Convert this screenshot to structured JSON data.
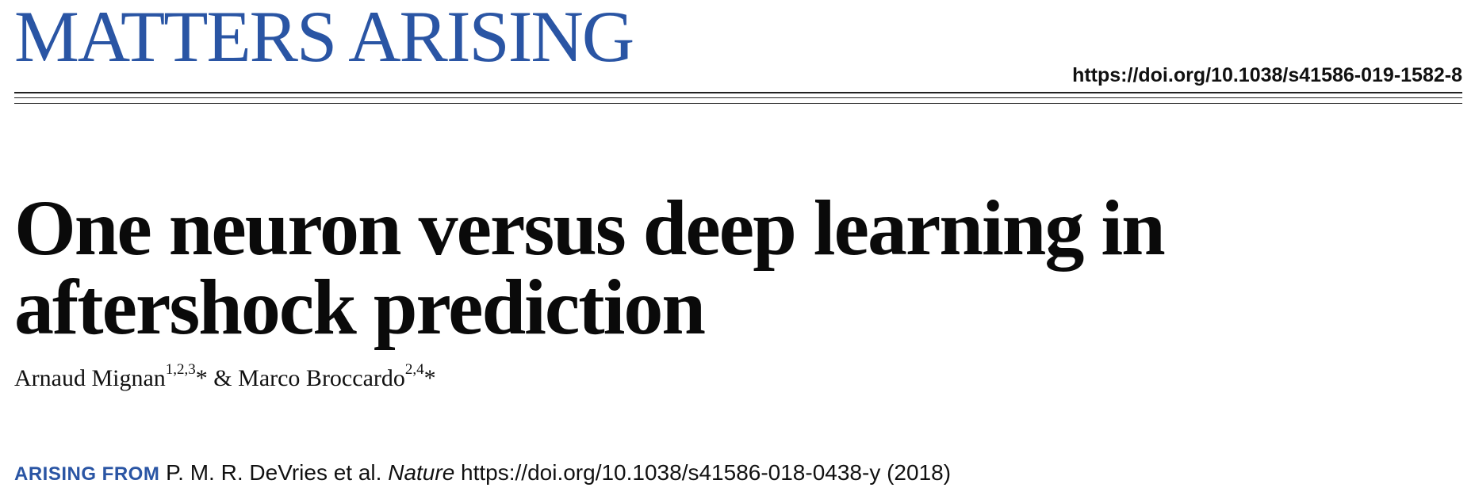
{
  "header": {
    "section_label": "MATTERS ARISING",
    "doi": "https://doi.org/10.1038/s41586-019-1582-8"
  },
  "article": {
    "title_line_1": "One neuron versus deep learning in",
    "title_line_2": "aftershock prediction"
  },
  "authors": {
    "author_1_name": "Arnaud Mignan",
    "author_1_affiliations": "1,2,3",
    "author_1_mark": "*",
    "separator": "&",
    "author_2_name": "Marco Broccardo",
    "author_2_affiliations": "2,4",
    "author_2_mark": "*"
  },
  "arising_from": {
    "label": "ARISING FROM",
    "authors": "P. M. R. DeVries et al.",
    "journal": "Nature",
    "doi": "https://doi.org/10.1038/s41586-018-0438-y",
    "year": "(2018)"
  },
  "colors": {
    "accent_blue": "#2a55a4",
    "text": "#111111"
  }
}
